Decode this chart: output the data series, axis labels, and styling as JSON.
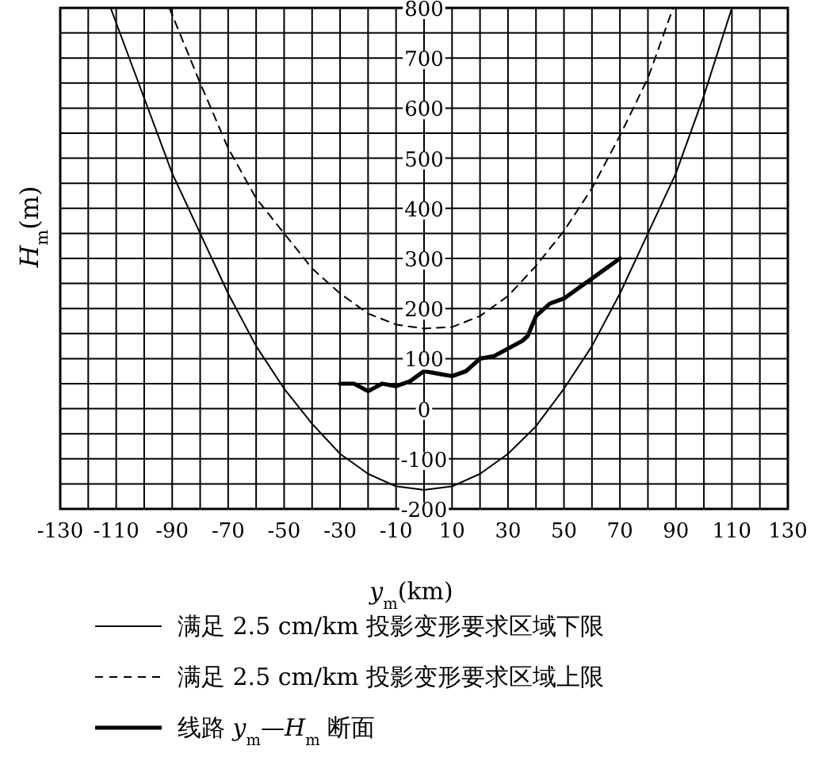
{
  "chart_data": {
    "type": "line",
    "xlabel": "*y*$_{m}$(km)",
    "ylabel": "*H*$_{m}$(m)",
    "xlim": [
      -130,
      130
    ],
    "ylim": [
      -200,
      800
    ],
    "xticks": [
      -130,
      {
        "value": -120,
        "label": null
      },
      -110,
      {
        "value": -100,
        "label": null
      },
      -90,
      {
        "value": -80,
        "label": null
      },
      -70,
      {
        "value": -60,
        "label": null
      },
      -50,
      {
        "value": -40,
        "label": null
      },
      -30,
      {
        "value": -20,
        "label": null
      },
      -10,
      {
        "value": 0,
        "label": null
      },
      10,
      {
        "value": 20,
        "label": null
      },
      30,
      {
        "value": 40,
        "label": null
      },
      50,
      {
        "value": 60,
        "label": null
      },
      70,
      {
        "value": 80,
        "label": null
      },
      90,
      {
        "value": 100,
        "label": null
      },
      110,
      {
        "value": 120,
        "label": null
      },
      130
    ],
    "yticks": [
      -200,
      {
        "value": -150,
        "label": null
      },
      -100,
      {
        "value": -50,
        "label": null
      },
      0,
      {
        "value": 50,
        "label": null
      },
      100,
      {
        "value": 150,
        "label": null
      },
      200,
      {
        "value": 250,
        "label": null
      },
      300,
      {
        "value": 350,
        "label": null
      },
      400,
      {
        "value": 450,
        "label": null
      },
      500,
      {
        "value": 550,
        "label": null
      },
      600,
      {
        "value": 650,
        "label": null
      },
      700,
      {
        "value": 750,
        "label": null
      },
      800
    ],
    "grid": true,
    "legend": "bottom",
    "marker": "none",
    "series": [
      {
        "name": "满足 2.5 cm/km 投影变形要求区域下限",
        "color": "#000000",
        "line_style": "solid",
        "x": [
          -112,
          -100,
          -90,
          -80,
          -70,
          -60,
          -50,
          -40,
          -30,
          -20,
          -10,
          0,
          10,
          20,
          30,
          40,
          50,
          60,
          70,
          80,
          90,
          100,
          110
        ],
        "values": [
          800,
          620,
          470,
          350,
          230,
          125,
          40,
          -30,
          -90,
          -130,
          -155,
          -162,
          -155,
          -130,
          -90,
          -35,
          40,
          125,
          230,
          350,
          470,
          625,
          800
        ]
      },
      {
        "name": "满足 2.5 cm/km 投影变形要求区域上限",
        "color": "#000000",
        "line_style": "dashed",
        "x": [
          -91,
          -80,
          -70,
          -60,
          -50,
          -40,
          -30,
          -20,
          -10,
          0,
          10,
          20,
          30,
          40,
          50,
          60,
          70,
          80,
          89
        ],
        "values": [
          800,
          650,
          520,
          420,
          350,
          280,
          230,
          190,
          168,
          160,
          163,
          185,
          225,
          285,
          355,
          440,
          545,
          660,
          800
        ]
      },
      {
        "name": "线路 *y*$_{m}$—*H*$_{m}$ 断面",
        "color": "#000000",
        "line_style": "solid",
        "x": [
          -30,
          -25,
          -20,
          -15,
          -10,
          -5,
          0,
          5,
          10,
          15,
          20,
          25,
          30,
          35,
          37,
          40,
          45,
          50,
          55,
          60,
          70
        ],
        "values": [
          50,
          50,
          35,
          50,
          45,
          55,
          75,
          70,
          65,
          75,
          100,
          105,
          120,
          135,
          145,
          185,
          210,
          220,
          240,
          260,
          300
        ]
      }
    ]
  }
}
